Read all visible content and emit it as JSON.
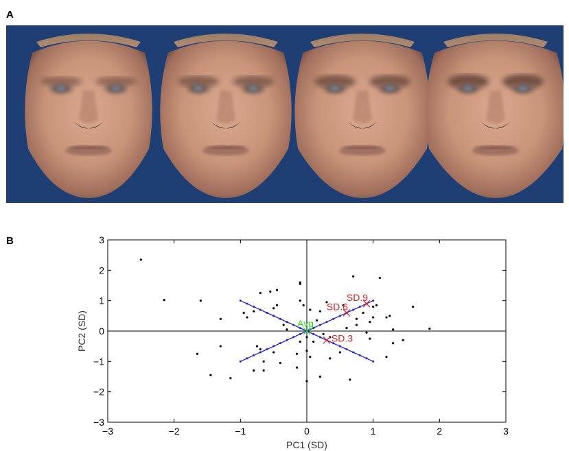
{
  "figure": {
    "panel_a_label": "A",
    "panel_b_label": "B"
  },
  "faces": {
    "background_color": "#1f3f74",
    "count": 4,
    "variation": [
      0,
      0.3,
      0.6,
      0.9
    ]
  },
  "chart_data": {
    "type": "scatter",
    "title": "",
    "xlabel": "PC1 (SD)",
    "ylabel": "PC2 (SD)",
    "xlim": [
      -3,
      3
    ],
    "ylim": [
      -3,
      3
    ],
    "xticks": [
      "−3",
      "−2",
      "−1",
      "0",
      "1",
      "2",
      "3"
    ],
    "yticks": [
      "−3",
      "−2",
      "−1",
      "0",
      "1",
      "2",
      "3"
    ],
    "grid": false,
    "zero_lines": true,
    "scatter_color": "#000000",
    "points": [
      [
        -2.5,
        2.35
      ],
      [
        -2.15,
        1.02
      ],
      [
        -1.6,
        1.0
      ],
      [
        -1.3,
        0.4
      ],
      [
        -1.65,
        -0.75
      ],
      [
        -1.3,
        -0.5
      ],
      [
        -1.45,
        -1.45
      ],
      [
        -1.15,
        -1.55
      ],
      [
        -0.95,
        0.6
      ],
      [
        -0.9,
        0.45
      ],
      [
        -0.8,
        0.65
      ],
      [
        -0.75,
        -0.5
      ],
      [
        -0.7,
        -0.6
      ],
      [
        -0.65,
        -1.0
      ],
      [
        -0.8,
        -1.3
      ],
      [
        -0.65,
        -1.3
      ],
      [
        -0.55,
        1.3
      ],
      [
        -0.5,
        0.75
      ],
      [
        -0.45,
        0.85
      ],
      [
        -0.45,
        1.35
      ],
      [
        -0.5,
        -0.7
      ],
      [
        -0.35,
        0.2
      ],
      [
        -0.3,
        0.05
      ],
      [
        -0.4,
        -1.05
      ],
      [
        -0.15,
        -1.2
      ],
      [
        -0.15,
        -0.75
      ],
      [
        -0.1,
        -0.35
      ],
      [
        -0.1,
        1.55
      ],
      [
        -0.1,
        1.6
      ],
      [
        -0.1,
        1.0
      ],
      [
        -0.05,
        0.85
      ],
      [
        0.0,
        -0.2
      ],
      [
        0.0,
        -0.65
      ],
      [
        0.05,
        -0.85
      ],
      [
        0.05,
        0.7
      ],
      [
        0.0,
        -1.65
      ],
      [
        0.1,
        -0.35
      ],
      [
        0.15,
        0.35
      ],
      [
        0.2,
        0.65
      ],
      [
        0.25,
        -0.1
      ],
      [
        0.35,
        -0.2
      ],
      [
        0.3,
        0.95
      ],
      [
        0.35,
        -0.9
      ],
      [
        0.2,
        -1.5
      ],
      [
        0.5,
        -0.7
      ],
      [
        0.55,
        0.85
      ],
      [
        0.65,
        -1.6
      ],
      [
        0.7,
        1.8
      ],
      [
        0.75,
        0.2
      ],
      [
        0.75,
        0.4
      ],
      [
        0.85,
        0.6
      ],
      [
        0.95,
        0.3
      ],
      [
        1.0,
        0.8
      ],
      [
        1.05,
        0.85
      ],
      [
        1.0,
        0.45
      ],
      [
        1.1,
        1.75
      ],
      [
        1.2,
        0.45
      ],
      [
        1.25,
        0.5
      ],
      [
        1.3,
        0.05
      ],
      [
        1.3,
        -0.4
      ],
      [
        1.45,
        -0.3
      ],
      [
        1.2,
        -0.85
      ],
      [
        1.6,
        0.8
      ],
      [
        1.85,
        0.08
      ],
      [
        0.95,
        -0.25
      ],
      [
        -0.7,
        1.25
      ],
      [
        0.6,
        0.1
      ],
      [
        0.9,
        -0.05
      ]
    ],
    "lines": [
      {
        "name": "",
        "color": "#1f1fcf",
        "from": [
          -1,
          1
        ],
        "to": [
          1,
          -1
        ]
      },
      {
        "name": "",
        "color": "#1f1fcf",
        "from": [
          -1,
          -1
        ],
        "to": [
          1,
          1
        ]
      }
    ],
    "annotations": [
      {
        "label": "Avg.",
        "x": 0,
        "y": 0,
        "color": "#22dd22",
        "marker": "x"
      },
      {
        "label": "SD.3",
        "x": 0.3,
        "y": -0.3,
        "color": "#dd2222",
        "marker": "x"
      },
      {
        "label": "SD.6",
        "x": 0.6,
        "y": 0.6,
        "color": "#dd2222",
        "marker": "x"
      },
      {
        "label": "SD.9",
        "x": 0.9,
        "y": 0.9,
        "color": "#dd2222",
        "marker": "x"
      }
    ]
  }
}
